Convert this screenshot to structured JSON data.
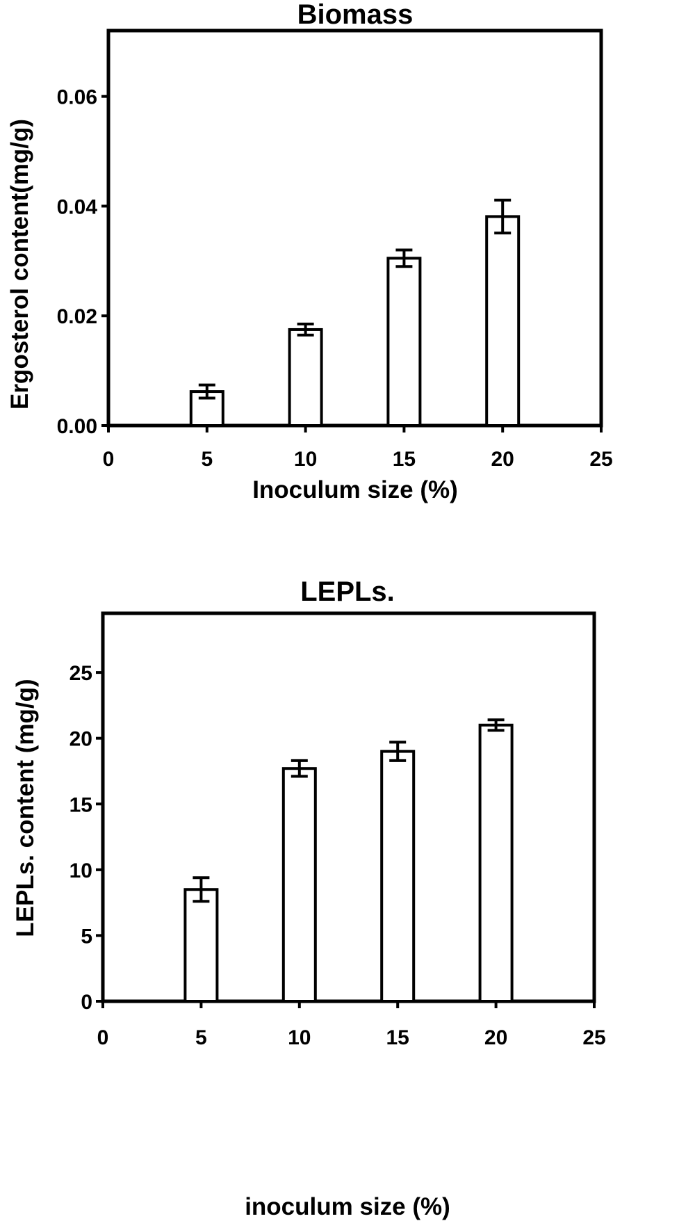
{
  "chart_data": [
    {
      "type": "bar",
      "title": "Biomass",
      "xlabel": "Inoculum size (%)",
      "ylabel": "Ergosterol content(mg/g)",
      "x": [
        5,
        10,
        15,
        20
      ],
      "values": [
        0.0062,
        0.0175,
        0.0305,
        0.0381
      ],
      "errors": [
        0.0012,
        0.001,
        0.0015,
        0.003
      ],
      "xlim": [
        0,
        25
      ],
      "ylim": [
        0,
        0.072
      ],
      "xticks": [
        "0",
        "5",
        "10",
        "15",
        "20",
        "25"
      ],
      "yticks": [
        "0.00",
        "0.02",
        "0.04",
        "0.06"
      ],
      "grid": false,
      "legend": "none"
    },
    {
      "type": "bar",
      "title": "LEPLs.",
      "xlabel": "inoculum size (%)",
      "ylabel": "LEPLs. content (mg/g)",
      "x": [
        5,
        10,
        15,
        20
      ],
      "values": [
        8.5,
        17.7,
        19.0,
        21.0
      ],
      "errors": [
        0.9,
        0.6,
        0.7,
        0.4
      ],
      "xlim": [
        0,
        25
      ],
      "ylim": [
        0,
        29.5
      ],
      "xticks": [
        "0",
        "5",
        "10",
        "15",
        "20",
        "25"
      ],
      "yticks": [
        "0",
        "5",
        "10",
        "15",
        "20",
        "25"
      ],
      "grid": false,
      "legend": "none"
    }
  ]
}
